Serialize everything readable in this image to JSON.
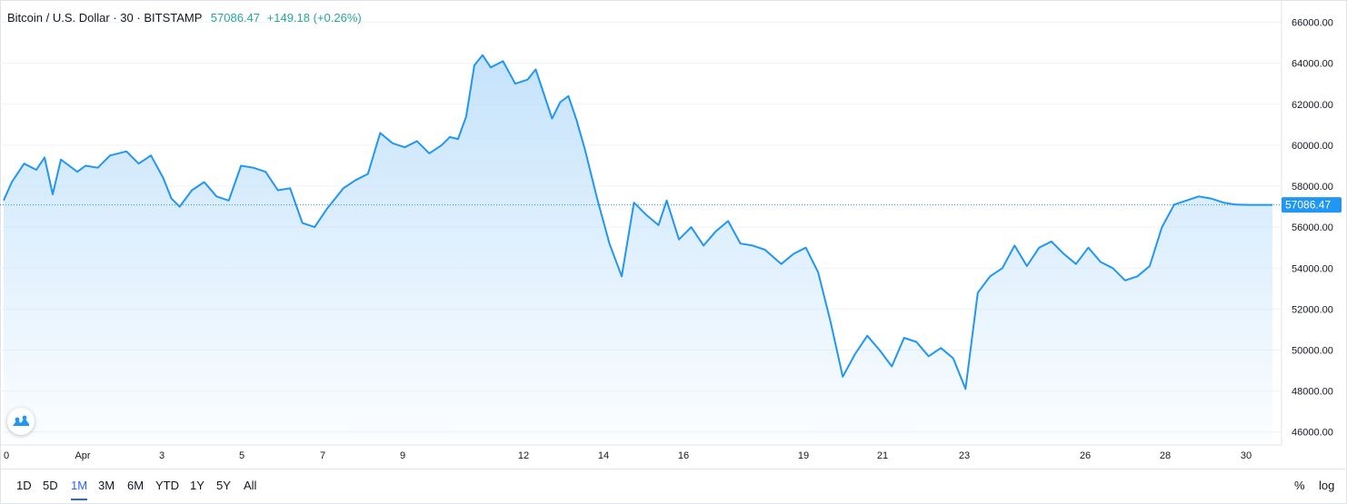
{
  "legend": {
    "symbol": "Bitcoin / U.S. Dollar",
    "interval": "30",
    "exchange": "BITSTAMP",
    "sep": "·",
    "last": "57086.47",
    "change": "+149.18 (+0.26%)"
  },
  "price_badge": "57086.47",
  "range_buttons": [
    "1D",
    "5D",
    "1M",
    "3M",
    "6M",
    "YTD",
    "1Y",
    "5Y",
    "All"
  ],
  "active_range": "1M",
  "scale": {
    "percent": "%",
    "log": "log"
  },
  "colors": {
    "line": "#2196f3",
    "fill_top": "#bbdefb",
    "badge": "#2196f3",
    "active": "#2962ff"
  },
  "chart_data": {
    "type": "area",
    "ylim": [
      45500,
      67000
    ],
    "y_ticks": [
      46000,
      48000,
      50000,
      52000,
      54000,
      56000,
      58000,
      60000,
      62000,
      64000,
      66000
    ],
    "y_tick_labels": [
      "46000.00",
      "48000.00",
      "50000.00",
      "52000.00",
      "54000.00",
      "56000.00",
      "58000.00",
      "60000.00",
      "62000.00",
      "64000.00",
      "66000.00"
    ],
    "x_tick_labels": [
      "0",
      "Apr",
      "3",
      "5",
      "7",
      "9",
      "12",
      "14",
      "16",
      "19",
      "21",
      "23",
      "26",
      "28",
      "30"
    ],
    "x_tick_pos": [
      0,
      2,
      3,
      4,
      5,
      6,
      7,
      8,
      9,
      10,
      11,
      12,
      13,
      14,
      15
    ],
    "x_range": [
      0,
      31
    ],
    "last_value": 57086.47,
    "series": [
      {
        "x": [
          0,
          0.2,
          0.5,
          0.8,
          1.0,
          1.2,
          1.4,
          1.6,
          1.8,
          2.0,
          2.3,
          2.6,
          3.0,
          3.3,
          3.6,
          3.9,
          4.1,
          4.3,
          4.6,
          4.9,
          5.2,
          5.5,
          5.8,
          6.1,
          6.4,
          6.7,
          7.0,
          7.3,
          7.6,
          7.9,
          8.1,
          8.3,
          8.6,
          8.9,
          9.2,
          9.5,
          9.8,
          10.1,
          10.4,
          10.7,
          10.9,
          11.1,
          11.3,
          11.5,
          11.7,
          11.9,
          12.2,
          12.5,
          12.8,
          13.0,
          13.2,
          13.4,
          13.6,
          13.8,
          14.0,
          14.2,
          14.5,
          14.8,
          15.1,
          15.4,
          15.7,
          16.0,
          16.2,
          16.5,
          16.8,
          17.1,
          17.4,
          17.7,
          18.0,
          18.3,
          18.6,
          19.0,
          19.3,
          19.6,
          19.9,
          20.2,
          20.5,
          20.8,
          21.1,
          21.4,
          21.7,
          22.0,
          22.3,
          22.6,
          22.9,
          23.2,
          23.5,
          23.8,
          24.1,
          24.4,
          24.7,
          25.0,
          25.3,
          25.6,
          25.9,
          26.2,
          26.5,
          26.8,
          27.1,
          27.4,
          27.7,
          28.0,
          28.3,
          28.6,
          28.9,
          29.2,
          29.5,
          29.8,
          30.1,
          30.4,
          30.7,
          31.0
        ],
        "y": [
          57300,
          58200,
          59100,
          58800,
          59400,
          57600,
          59300,
          59000,
          58700,
          59000,
          58900,
          59500,
          59700,
          59100,
          59500,
          58400,
          57400,
          57000,
          57800,
          58200,
          57500,
          57300,
          59000,
          58900,
          58700,
          57800,
          57900,
          56200,
          56000,
          56900,
          57400,
          57900,
          58300,
          58600,
          60600,
          60100,
          59900,
          60200,
          59600,
          60000,
          60400,
          60300,
          61400,
          63900,
          64400,
          63800,
          64100,
          63000,
          63200,
          63700,
          62500,
          61300,
          62100,
          62400,
          61200,
          59800,
          57400,
          55200,
          53600,
          57200,
          56600,
          56100,
          57300,
          55400,
          56000,
          55100,
          55800,
          56300,
          55200,
          55100,
          54900,
          54200,
          54700,
          55000,
          53800,
          51400,
          48700,
          49800,
          50700,
          50000,
          49200,
          50600,
          50400,
          49700,
          50100,
          49600,
          48100,
          52800,
          53600,
          54000,
          55100,
          54100,
          55000,
          55300,
          54700,
          54200,
          55000,
          54300,
          54000,
          53400,
          53600,
          54100,
          56000,
          57100,
          57300,
          57500,
          57400,
          57200,
          57100,
          57086,
          57086,
          57086
        ]
      }
    ]
  }
}
